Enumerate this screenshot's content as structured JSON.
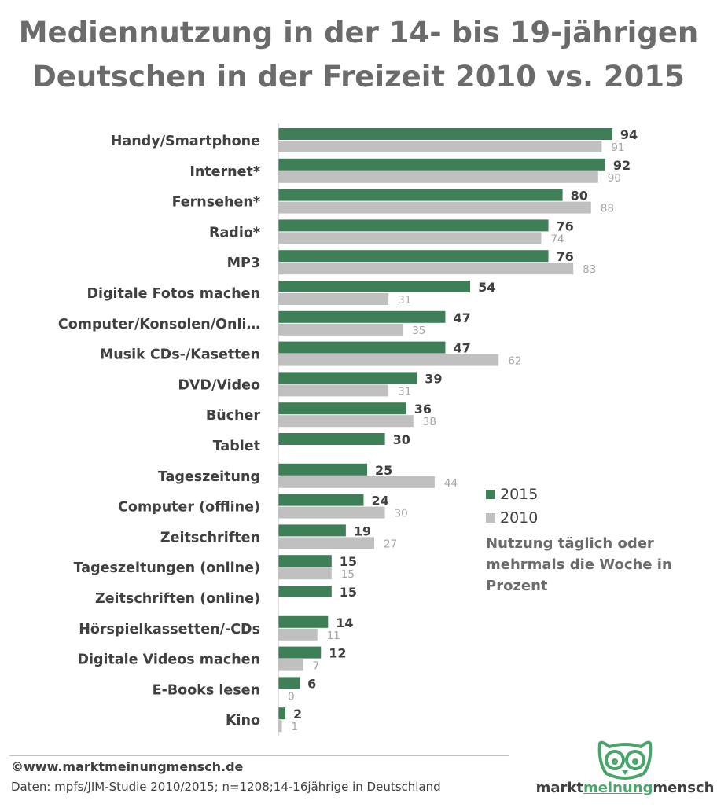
{
  "title_lines": [
    "Mediennutzung in der 14- bis 19-jährigen",
    "Deutschen in der Freizeit 2010 vs. 2015"
  ],
  "chart_data": {
    "type": "bar",
    "orientation": "horizontal",
    "categories": [
      "Handy/Smartphone",
      "Internet*",
      "Fernsehen*",
      "Radio*",
      "MP3",
      "Digitale Fotos machen",
      "Computer/Konsolen/Onli…",
      "Musik CDs-/Kasetten",
      "DVD/Video",
      "Bücher",
      "Tablet",
      "Tageszeitung",
      "Computer (offline)",
      "Zeitschriften",
      "Tageszeitungen (online)",
      "Zeitschriften (online)",
      "Hörspielkassetten/-CDs",
      "Digitale Videos machen",
      "E-Books lesen",
      "Kino"
    ],
    "series": [
      {
        "name": "2015",
        "color": "#3e7f57",
        "values": [
          94,
          92,
          80,
          76,
          76,
          54,
          47,
          47,
          39,
          36,
          30,
          25,
          24,
          19,
          15,
          15,
          14,
          12,
          6,
          2
        ]
      },
      {
        "name": "2010",
        "color": "#c0c0c0",
        "values": [
          91,
          90,
          88,
          74,
          83,
          31,
          35,
          62,
          31,
          38,
          null,
          44,
          30,
          27,
          15,
          null,
          11,
          7,
          0,
          1
        ]
      }
    ],
    "xlim": [
      0,
      100
    ],
    "legend_position": "right"
  },
  "legend": {
    "note": "Nutzung täglich oder mehrmals die Woche in Prozent"
  },
  "footer": {
    "copyright": "©www.marktmeinungmensch.de",
    "source": "Daten: mpfs/JIM-Studie 2010/2015; n=1208;14-16jährige in Deutschland"
  },
  "logo": {
    "word1": "markt",
    "word2": "meinung",
    "word3": "mensch",
    "accent_color": "#4aa56b",
    "icon": "owl-icon"
  }
}
